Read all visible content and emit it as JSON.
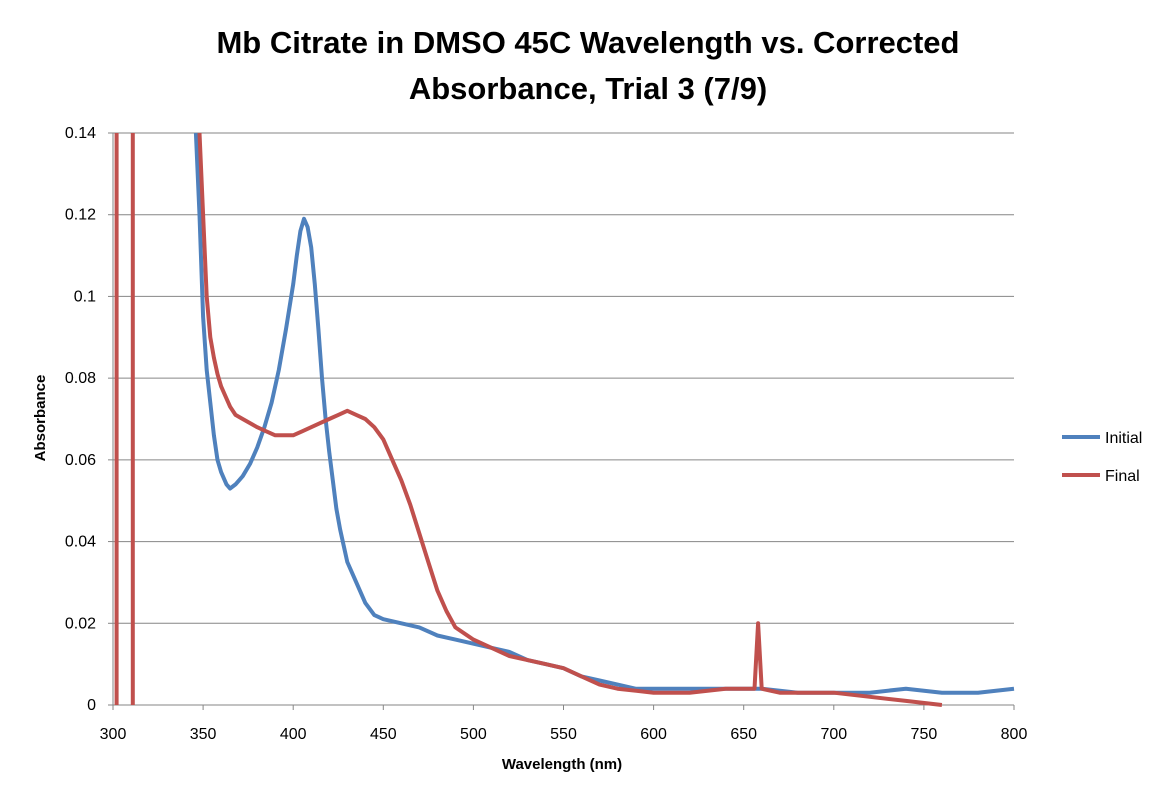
{
  "chart_data": {
    "type": "line",
    "title_lines": [
      "Mb Citrate in DMSO 45C Wavelength vs. Corrected",
      "Absorbance, Trial 3 (7/9)"
    ],
    "xlabel": "Wavelength (nm)",
    "ylabel": "Absorbance",
    "xlim": [
      300,
      800
    ],
    "ylim": [
      0,
      0.14
    ],
    "x_ticks": [
      300,
      350,
      400,
      450,
      500,
      550,
      600,
      650,
      700,
      750,
      800
    ],
    "x_tick_labels": [
      "300",
      "350",
      "400",
      "450",
      "500",
      "550",
      "600",
      "650",
      "700",
      "750",
      "800"
    ],
    "y_ticks": [
      0,
      0.02,
      0.04,
      0.06,
      0.08,
      0.1,
      0.12,
      0.14
    ],
    "y_tick_labels": [
      "0",
      "0.02",
      "0.04",
      "0.06",
      "0.08",
      "0.1",
      "0.12",
      "0.14"
    ],
    "grid": "horizontal",
    "legend_position": "right",
    "series": [
      {
        "name": "Initial",
        "color": "#4F81BD",
        "x": [
          346,
          348,
          350,
          352,
          354,
          356,
          358,
          360,
          363,
          365,
          368,
          372,
          376,
          380,
          384,
          388,
          392,
          396,
          400,
          402,
          404,
          406,
          408,
          410,
          412,
          414,
          416,
          418,
          420,
          422,
          424,
          426,
          428,
          430,
          435,
          440,
          445,
          450,
          460,
          470,
          480,
          490,
          500,
          510,
          520,
          530,
          540,
          550,
          560,
          570,
          580,
          590,
          600,
          620,
          640,
          660,
          680,
          700,
          720,
          740,
          760,
          780,
          800
        ],
        "y": [
          0.14,
          0.12,
          0.095,
          0.082,
          0.074,
          0.066,
          0.06,
          0.057,
          0.054,
          0.053,
          0.054,
          0.056,
          0.059,
          0.063,
          0.068,
          0.074,
          0.082,
          0.092,
          0.103,
          0.11,
          0.116,
          0.119,
          0.117,
          0.112,
          0.103,
          0.092,
          0.08,
          0.07,
          0.062,
          0.055,
          0.048,
          0.043,
          0.039,
          0.035,
          0.03,
          0.025,
          0.022,
          0.021,
          0.02,
          0.019,
          0.017,
          0.016,
          0.015,
          0.014,
          0.013,
          0.011,
          0.01,
          0.009,
          0.007,
          0.006,
          0.005,
          0.004,
          0.004,
          0.004,
          0.004,
          0.004,
          0.003,
          0.003,
          0.003,
          0.004,
          0.003,
          0.003,
          0.004
        ]
      },
      {
        "name": "Final",
        "color": "#C0504D",
        "x": [
          348,
          350,
          352,
          354,
          356,
          358,
          360,
          362,
          365,
          368,
          372,
          376,
          380,
          385,
          390,
          395,
          400,
          405,
          410,
          415,
          420,
          425,
          430,
          435,
          440,
          445,
          450,
          455,
          460,
          465,
          470,
          475,
          480,
          485,
          490,
          500,
          510,
          520,
          530,
          540,
          550,
          560,
          570,
          580,
          600,
          620,
          640,
          650,
          656,
          658,
          660,
          670,
          680,
          700,
          720,
          740,
          760
        ],
        "y": [
          0.14,
          0.12,
          0.1,
          0.09,
          0.085,
          0.081,
          0.078,
          0.076,
          0.073,
          0.071,
          0.07,
          0.069,
          0.068,
          0.067,
          0.066,
          0.066,
          0.066,
          0.067,
          0.068,
          0.069,
          0.07,
          0.071,
          0.072,
          0.071,
          0.07,
          0.068,
          0.065,
          0.06,
          0.055,
          0.049,
          0.042,
          0.035,
          0.028,
          0.023,
          0.019,
          0.016,
          0.014,
          0.012,
          0.011,
          0.01,
          0.009,
          0.007,
          0.005,
          0.004,
          0.003,
          0.003,
          0.004,
          0.004,
          0.004,
          0.02,
          0.004,
          0.003,
          0.003,
          0.003,
          0.002,
          0.001,
          0.0
        ]
      },
      {
        "name": "",
        "color": "#C0504D",
        "x": [
          302,
          302
        ],
        "y": [
          0.0,
          0.14
        ]
      },
      {
        "name": "",
        "color": "#C0504D",
        "x": [
          311,
          311
        ],
        "y": [
          0.0,
          0.14
        ]
      }
    ]
  }
}
